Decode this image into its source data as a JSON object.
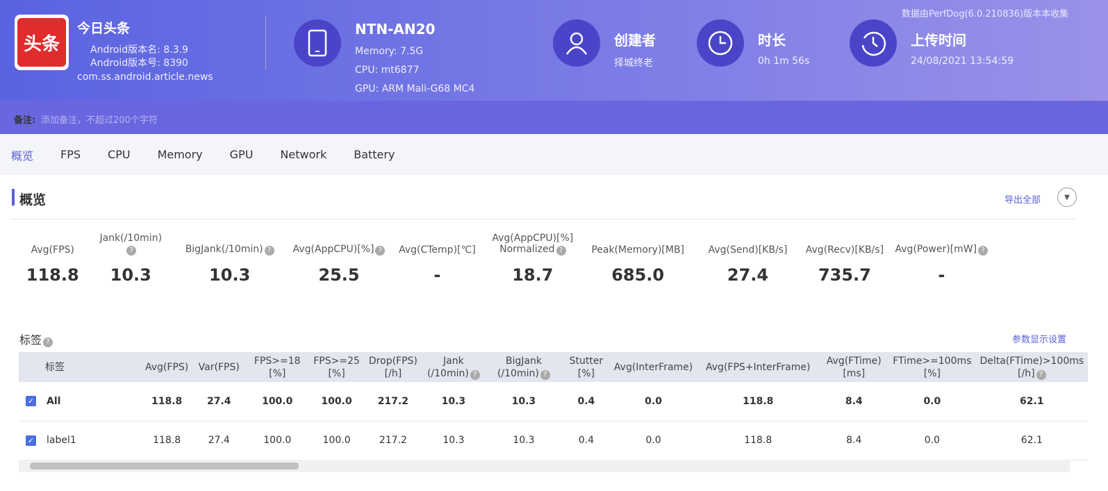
{
  "header": {
    "app": {
      "icon_text": "头条",
      "name": "今日头条",
      "version_name": "Android版本名: 8.3.9",
      "version_code": "Android版本号: 8390",
      "package": "com.ss.android.article.news"
    },
    "device": {
      "model": "NTN-AN20",
      "memory": "Memory: 7.5G",
      "cpu": "CPU: mt6877",
      "gpu": "GPU: ARM Mali-G68 MC4"
    },
    "creator": {
      "label": "创建者",
      "value": "择城终老"
    },
    "duration": {
      "label": "时长",
      "value": "0h 1m 56s"
    },
    "upload": {
      "label": "上传时间",
      "value": "24/08/2021 13:54:59"
    },
    "source_note": "数据由PerfDog(6.0.210836)版本本收集"
  },
  "remark": {
    "label": "备注:",
    "placeholder": "添加备注，不超过200个字符"
  },
  "tabs": [
    "概览",
    "FPS",
    "CPU",
    "Memory",
    "GPU",
    "Network",
    "Battery"
  ],
  "overview": {
    "title": "概览",
    "export": "导出全部",
    "metrics": [
      {
        "label": "Avg(FPS)",
        "value": "118.8"
      },
      {
        "label": "Jank(/10min)",
        "value": "10.3"
      },
      {
        "label": "BigJank(/10min)",
        "value": "10.3"
      },
      {
        "label": "Avg(AppCPU)[%]",
        "value": "25.5"
      },
      {
        "label": "Avg(CTemp)[℃]",
        "value": "-"
      },
      {
        "label": "Avg(AppCPU)[%]\nNormalized",
        "value": "18.7"
      },
      {
        "label": "Peak(Memory)[MB]",
        "value": "685.0"
      },
      {
        "label": "Avg(Send)[KB/s]",
        "value": "27.4"
      },
      {
        "label": "Avg(Recv)[KB/s]",
        "value": "735.7"
      },
      {
        "label": "Avg(Power)[mW]",
        "value": "-"
      }
    ]
  },
  "labels": {
    "title": "标签",
    "settings": "参数显示设置",
    "table": {
      "headers": [
        "标签",
        "Avg(FPS)",
        "Var(FPS)",
        "FPS>=18\n[%]",
        "FPS>=25\n[%]",
        "Drop(FPS)\n[/h]",
        "Jank\n(/10min)",
        "BigJank\n(/10min)",
        "Stutter\n[%]",
        "Avg(InterFrame)",
        "Avg(FPS+InterFrame)",
        "Avg(FTime)\n[ms]",
        "FTime>=100ms\n[%]",
        "Delta(FTime)>100ms\n[/h]"
      ],
      "rows": [
        [
          "All",
          "118.8",
          "27.4",
          "100.0",
          "100.0",
          "217.2",
          "10.3",
          "10.3",
          "0.4",
          "0.0",
          "118.8",
          "8.4",
          "0.0",
          "62.1"
        ],
        [
          "label1",
          "118.8",
          "27.4",
          "100.0",
          "100.0",
          "217.2",
          "10.3",
          "10.3",
          "0.4",
          "0.0",
          "118.8",
          "8.4",
          "0.0",
          "62.1"
        ]
      ]
    }
  }
}
